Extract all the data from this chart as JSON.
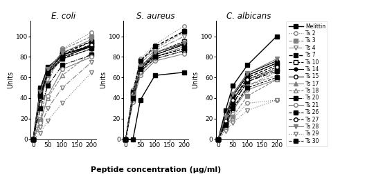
{
  "x": [
    0,
    25,
    50,
    100,
    200
  ],
  "series_labels": [
    "Melittin",
    "Ts 2",
    "Ts 3",
    "Ts 4",
    "Ts 7",
    "Ts 10",
    "Ts 14",
    "Ts 15",
    "Ts 17",
    "Ts 18",
    "Ts 20",
    "Ts 21",
    "Ts 26",
    "Ts 27",
    "Ts 28",
    "Ts 29",
    "Ts 30"
  ],
  "ecoli": [
    [
      0,
      50,
      70,
      82,
      91
    ],
    [
      0,
      20,
      55,
      88,
      104
    ],
    [
      0,
      18,
      55,
      87,
      100
    ],
    [
      0,
      12,
      30,
      50,
      75
    ],
    [
      0,
      48,
      68,
      84,
      95
    ],
    [
      0,
      42,
      66,
      82,
      92
    ],
    [
      0,
      44,
      66,
      82,
      90
    ],
    [
      0,
      40,
      64,
      80,
      90
    ],
    [
      0,
      38,
      62,
      78,
      88
    ],
    [
      0,
      18,
      40,
      62,
      84
    ],
    [
      0,
      30,
      52,
      72,
      82
    ],
    [
      0,
      16,
      42,
      68,
      80
    ],
    [
      0,
      44,
      66,
      82,
      95
    ],
    [
      0,
      40,
      64,
      78,
      92
    ],
    [
      0,
      46,
      68,
      84,
      97
    ],
    [
      0,
      6,
      18,
      35,
      65
    ],
    [
      0,
      42,
      64,
      78,
      88
    ]
  ],
  "saureus": [
    [
      0,
      0,
      38,
      62,
      65
    ],
    [
      0,
      48,
      78,
      92,
      110
    ],
    [
      0,
      46,
      76,
      88,
      104
    ],
    [
      0,
      44,
      74,
      86,
      100
    ],
    [
      0,
      46,
      76,
      90,
      105
    ],
    [
      0,
      44,
      70,
      84,
      95
    ],
    [
      0,
      42,
      68,
      82,
      92
    ],
    [
      0,
      42,
      70,
      84,
      93
    ],
    [
      0,
      40,
      68,
      80,
      90
    ],
    [
      0,
      38,
      66,
      78,
      86
    ],
    [
      0,
      38,
      66,
      78,
      86
    ],
    [
      0,
      36,
      62,
      76,
      83
    ],
    [
      0,
      42,
      70,
      82,
      92
    ],
    [
      0,
      40,
      68,
      80,
      88
    ],
    [
      0,
      42,
      70,
      84,
      94
    ],
    [
      0,
      38,
      64,
      78,
      86
    ],
    [
      0,
      40,
      68,
      80,
      88
    ]
  ],
  "calbicans": [
    [
      0,
      28,
      52,
      72,
      100
    ],
    [
      0,
      10,
      20,
      35,
      38
    ],
    [
      0,
      12,
      22,
      42,
      58
    ],
    [
      0,
      14,
      28,
      52,
      65
    ],
    [
      0,
      18,
      38,
      60,
      72
    ],
    [
      0,
      16,
      35,
      56,
      68
    ],
    [
      0,
      22,
      44,
      64,
      76
    ],
    [
      0,
      20,
      42,
      62,
      74
    ],
    [
      0,
      18,
      38,
      58,
      68
    ],
    [
      0,
      14,
      30,
      52,
      62
    ],
    [
      0,
      16,
      34,
      56,
      66
    ],
    [
      0,
      12,
      28,
      48,
      58
    ],
    [
      0,
      20,
      42,
      62,
      74
    ],
    [
      0,
      18,
      38,
      58,
      70
    ],
    [
      0,
      22,
      44,
      64,
      78
    ],
    [
      0,
      8,
      16,
      28,
      38
    ],
    [
      0,
      14,
      30,
      50,
      60
    ]
  ],
  "title_ecoli": "E. coli",
  "title_saureus": "S. aureus",
  "title_calbicans": "C. albicans",
  "xlabel": "Peptide concentration (μg/ml)",
  "ylabel": "Units",
  "ylim": [
    0,
    115
  ],
  "yticks": [
    0,
    20,
    40,
    60,
    80,
    100
  ],
  "xticks": [
    0,
    50,
    100,
    150,
    200
  ]
}
